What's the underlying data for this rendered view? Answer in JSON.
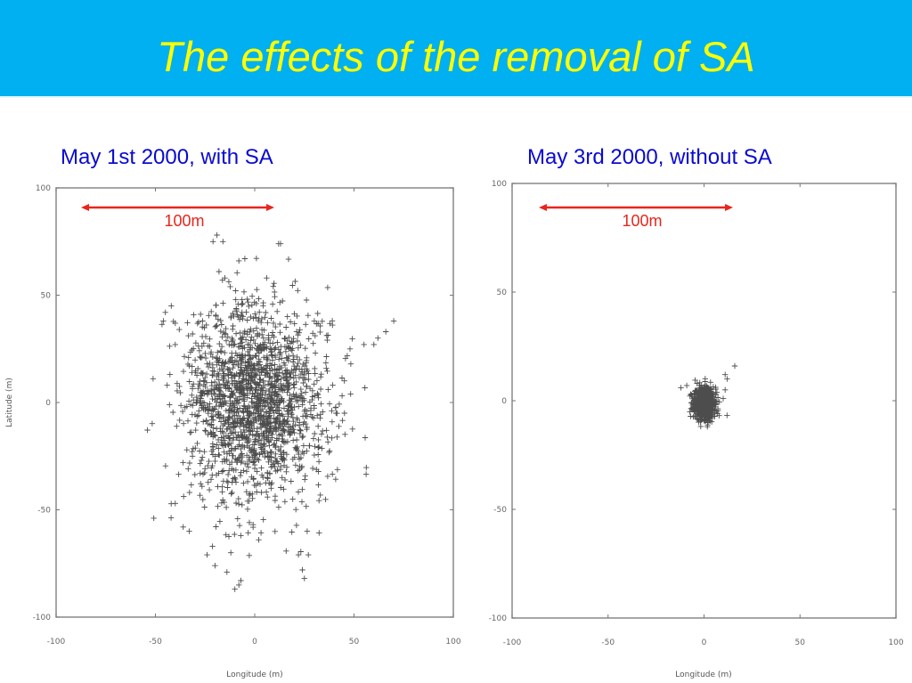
{
  "slide": {
    "title": "The effects of the removal of SA",
    "header_bg": "#00b0f0",
    "title_color": "#ffff00",
    "subtitle_color": "#0a0ad0",
    "annotation_color": "#e8261c"
  },
  "plots": [
    {
      "subtitle": "May 1st 2000, with SA",
      "scale_label": "100m",
      "xlabel": "Longitude  (m)",
      "ylabel": "Latitude  (m)",
      "xticks": [
        "-100",
        "-50",
        "0",
        "50",
        "100"
      ],
      "yticks": [
        "100",
        "50",
        "0",
        "-50",
        "-100"
      ]
    },
    {
      "subtitle": "May 3rd 2000, without SA",
      "scale_label": "100m",
      "xlabel": "Longitude  (m)",
      "ylabel": "",
      "xticks": [
        "-100",
        "-50",
        "0",
        "50",
        "100"
      ],
      "yticks": [
        "100",
        "50",
        "0",
        "-50",
        "-100"
      ]
    }
  ],
  "chart_data": [
    {
      "type": "scatter",
      "title": "May 1st 2000, with SA",
      "xlabel": "Longitude (m)",
      "ylabel": "Latitude (m)",
      "xlim": [
        -100,
        100
      ],
      "ylim": [
        -100,
        100
      ],
      "xticks": [
        -100,
        -50,
        0,
        50,
        100
      ],
      "yticks": [
        -100,
        -50,
        0,
        50,
        100
      ],
      "marker": "+",
      "grid": false,
      "annotation": {
        "text": "100m",
        "arrow_from_x": -87,
        "arrow_to_x": 13,
        "y": 90
      },
      "distribution": {
        "n": 1800,
        "center": [
          0,
          0
        ],
        "sigma": [
          18,
          22
        ],
        "seed": 7
      },
      "notable_points": [
        [
          -21,
          75
        ],
        [
          -19,
          78
        ],
        [
          -16,
          75
        ],
        [
          12,
          74
        ],
        [
          13,
          74
        ],
        [
          -8,
          66
        ],
        [
          -5,
          67
        ],
        [
          -18,
          61
        ],
        [
          -15,
          58
        ],
        [
          6,
          58
        ],
        [
          -45,
          42
        ],
        [
          -42,
          45
        ],
        [
          -38,
          34
        ],
        [
          -46,
          38
        ],
        [
          -40,
          27
        ],
        [
          70,
          38
        ],
        [
          66,
          33
        ],
        [
          62,
          30
        ],
        [
          60,
          27
        ],
        [
          55,
          27
        ],
        [
          48,
          25
        ],
        [
          -40,
          -47
        ],
        [
          -36,
          -58
        ],
        [
          -33,
          -60
        ],
        [
          -24,
          -71
        ],
        [
          -20,
          -76
        ],
        [
          -12,
          -70
        ],
        [
          -14,
          -79
        ],
        [
          -8,
          -85
        ],
        [
          -10,
          -87
        ],
        [
          -7,
          -83
        ],
        [
          22,
          -71
        ],
        [
          27,
          -71
        ],
        [
          24,
          -78
        ],
        [
          25,
          -82
        ],
        [
          2,
          -64
        ],
        [
          -7,
          -62
        ]
      ]
    },
    {
      "type": "scatter",
      "title": "May 3rd 2000, without SA",
      "xlabel": "Longitude (m)",
      "ylabel": "",
      "xlim": [
        -100,
        100
      ],
      "ylim": [
        -100,
        100
      ],
      "xticks": [
        -100,
        -50,
        0,
        50,
        100
      ],
      "yticks": [
        -100,
        -50,
        0,
        50,
        100
      ],
      "marker": "+",
      "grid": false,
      "annotation": {
        "text": "100m",
        "arrow_from_x": -85,
        "arrow_to_x": 15,
        "y": 90
      },
      "distribution": {
        "n": 900,
        "center": [
          0,
          -1
        ],
        "sigma": [
          2.6,
          3.6
        ],
        "seed": 11
      },
      "notable_points": [
        [
          16,
          16
        ],
        [
          11,
          12
        ],
        [
          12,
          10
        ],
        [
          -12,
          6
        ],
        [
          -9,
          7
        ],
        [
          -7,
          3
        ],
        [
          -6,
          -2
        ],
        [
          -4,
          -7
        ],
        [
          3,
          -8
        ],
        [
          7,
          -6
        ],
        [
          11,
          5
        ],
        [
          10,
          1
        ]
      ]
    }
  ]
}
